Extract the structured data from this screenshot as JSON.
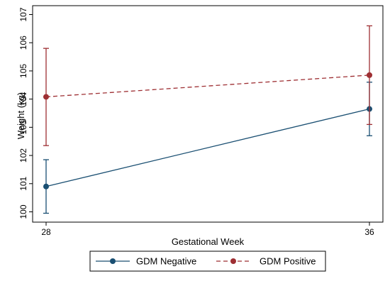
{
  "chart_data": {
    "type": "line",
    "xlabel": "Gestational Week",
    "ylabel": "Weight (kg)",
    "x": [
      28,
      36
    ],
    "x_tick_labels": [
      "28",
      "36"
    ],
    "xlim": [
      28,
      36
    ],
    "ylim": [
      99.85,
      107.1
    ],
    "y_ticks": [
      100,
      101,
      102,
      103,
      104,
      105,
      106,
      107
    ],
    "y_tick_labels": [
      "100",
      "101",
      "102",
      "103",
      "104",
      "105",
      "106",
      "107"
    ],
    "grid": false,
    "legend_placement": "bottom",
    "series": [
      {
        "name": "GDM Negative",
        "color": "#1a4f72",
        "line_style": "solid",
        "values": [
          100.9,
          103.65
        ],
        "error_low": [
          99.95,
          102.7
        ],
        "error_high": [
          101.85,
          104.6
        ]
      },
      {
        "name": "GDM Positive",
        "color": "#9e2f33",
        "line_style": "dashed",
        "values": [
          104.08,
          104.85
        ],
        "error_low": [
          102.35,
          103.1
        ],
        "error_high": [
          105.8,
          106.6
        ]
      }
    ]
  }
}
